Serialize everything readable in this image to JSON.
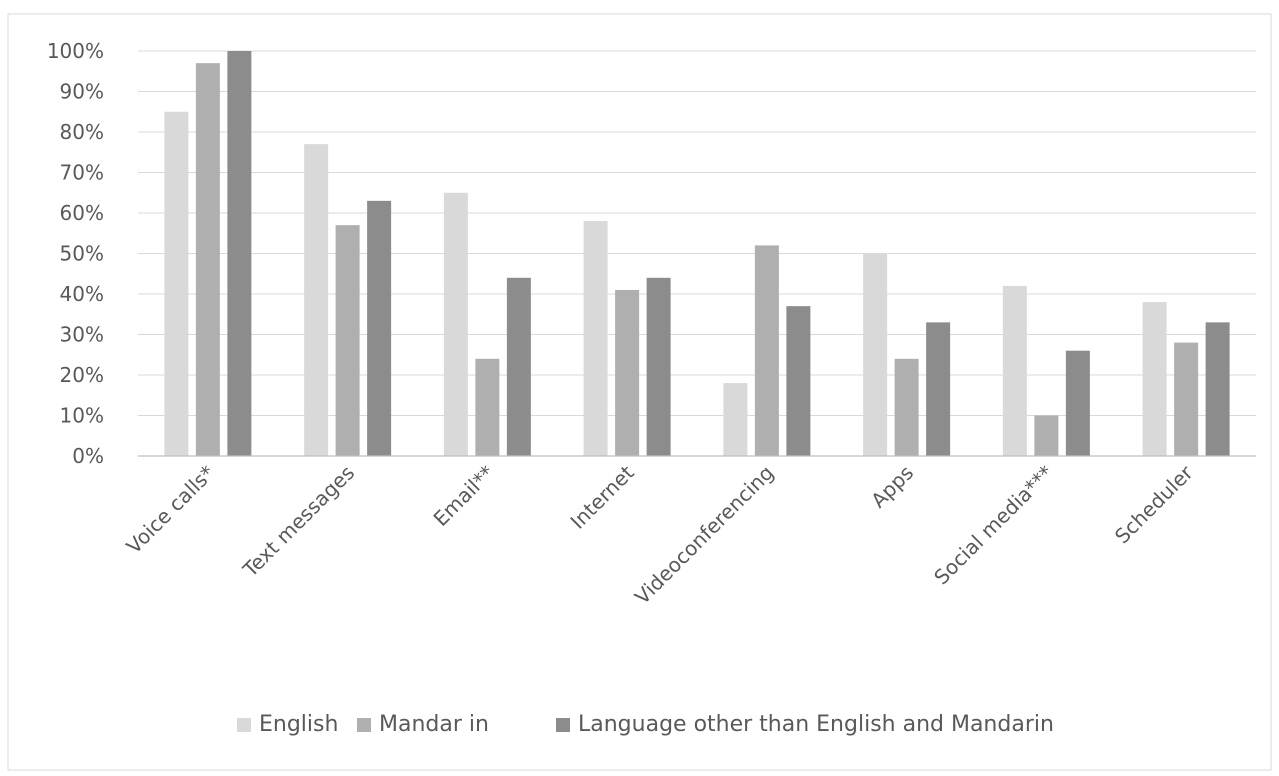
{
  "chart_data": {
    "type": "bar",
    "title": "",
    "xlabel": "",
    "ylabel": "",
    "categories": [
      "Voice calls*",
      "Text messages",
      "Email**",
      "Internet",
      "Videoconferencing",
      "Apps",
      "Social media***",
      "Scheduler"
    ],
    "series": [
      {
        "name": "English",
        "color": "#d9d9d9",
        "values": [
          85,
          77,
          65,
          58,
          18,
          50,
          42,
          38
        ]
      },
      {
        "name": "Mandar in",
        "color": "#afafaf",
        "values": [
          97,
          57,
          24,
          41,
          52,
          24,
          10,
          28
        ]
      },
      {
        "name": "Language other than English and Mandarin",
        "color": "#8c8c8c",
        "values": [
          100,
          63,
          44,
          44,
          37,
          33,
          26,
          33
        ]
      }
    ],
    "ylim": [
      0,
      100
    ],
    "yticks": [
      0,
      10,
      20,
      30,
      40,
      50,
      60,
      70,
      80,
      90,
      100
    ],
    "ytick_suffix": "%",
    "grid": true,
    "legend_position": "bottom"
  }
}
